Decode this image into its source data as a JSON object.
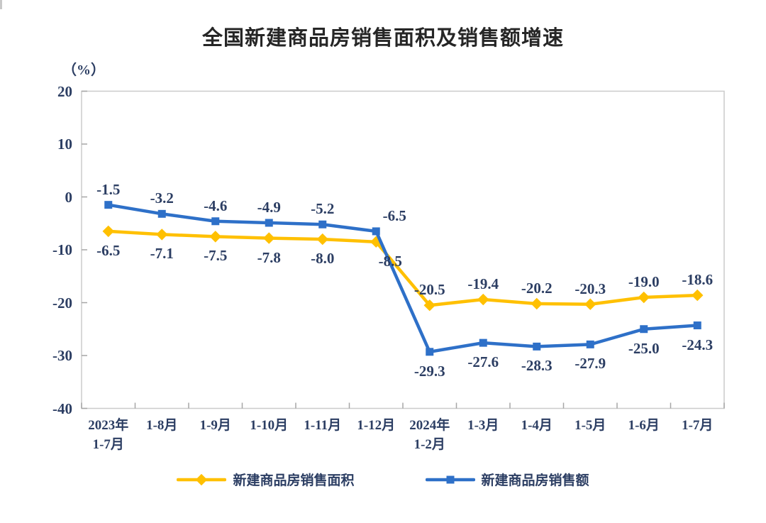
{
  "title": "全国新建商品房销售面积及销售额增速",
  "y_axis_unit": "（%）",
  "colors": {
    "series_area": "#FFC000",
    "series_amount": "#2E70C8",
    "axis_border": "#cbcbcb",
    "tick": "#a6a6a6",
    "label_text": "#2c3e63",
    "title_text": "#262626"
  },
  "chart_data": {
    "type": "line",
    "title": "全国新建商品房销售面积及销售额增速",
    "ylabel": "（%）",
    "xlabel": "",
    "ylim": [
      -40,
      20
    ],
    "yticks": [
      20,
      10,
      0,
      -10,
      -20,
      -30,
      -40
    ],
    "grid": false,
    "legend_position": "bottom",
    "categories": [
      [
        "2023年",
        "1-7月"
      ],
      [
        "1-8月"
      ],
      [
        "1-9月"
      ],
      [
        "1-10月"
      ],
      [
        "1-11月"
      ],
      [
        "1-12月"
      ],
      [
        "2024年",
        "1-2月"
      ],
      [
        "1-3月"
      ],
      [
        "1-4月"
      ],
      [
        "1-5月"
      ],
      [
        "1-6月"
      ],
      [
        "1-7月"
      ]
    ],
    "series": [
      {
        "name": "新建商品房销售面积",
        "marker": "diamond",
        "color": "#FFC000",
        "values": [
          -6.5,
          -7.1,
          -7.5,
          -7.8,
          -8.0,
          -8.5,
          -20.5,
          -19.4,
          -20.2,
          -20.3,
          -19.0,
          -18.6
        ],
        "labels": [
          "-6.5",
          "-7.1",
          "-7.5",
          "-7.8",
          "-8.0",
          "-8.5",
          "-20.5",
          "-19.4",
          "-20.2",
          "-20.3",
          "-19.0",
          "-18.6"
        ]
      },
      {
        "name": "新建商品房销售额",
        "marker": "square",
        "color": "#2E70C8",
        "values": [
          -1.5,
          -3.2,
          -4.6,
          -4.9,
          -5.2,
          -6.5,
          -29.3,
          -27.6,
          -28.3,
          -27.9,
          -25.0,
          -24.3
        ],
        "labels": [
          "-1.5",
          "-3.2",
          "-4.6",
          "-4.9",
          "-5.2",
          "-6.5",
          "-29.3",
          "-27.6",
          "-28.3",
          "-27.9",
          "-25.0",
          "-24.3"
        ]
      }
    ]
  },
  "legend": {
    "items": [
      {
        "label": "新建商品房销售面积"
      },
      {
        "label": "新建商品房销售额"
      }
    ]
  }
}
